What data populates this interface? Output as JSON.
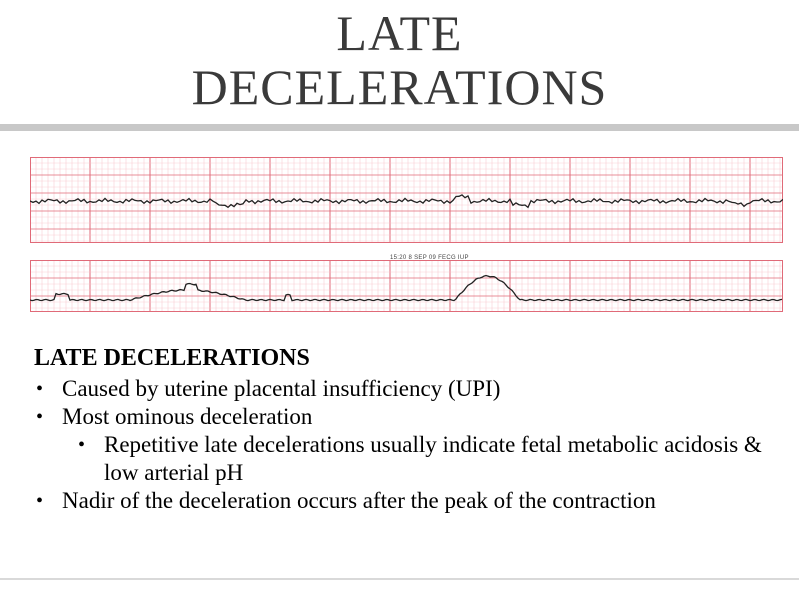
{
  "slide": {
    "title_line1": "LATE",
    "title_line2": "DECELERATIONS"
  },
  "strip": {
    "header_text": "15:20 8 SEP 09 FECG IUP"
  },
  "content": {
    "heading": "LATE DECELERATIONS",
    "bullets": [
      {
        "level": 1,
        "text": "Caused by uterine placental insufficiency (UPI)"
      },
      {
        "level": 1,
        "text": "Most ominous deceleration"
      },
      {
        "level": 2,
        "text": "Repetitive late decelerations usually indicate fetal metabolic acidosis & low arterial pH"
      },
      {
        "level": 1,
        "text": "Nadir of the deceleration occurs after the peak of the contraction"
      }
    ]
  },
  "colors": {
    "grid_major": "#e06a78",
    "grid_minor": "#f7c4cc",
    "trace": "#222222",
    "title": "#3a3a3a",
    "rule": "#c8c8c8"
  }
}
